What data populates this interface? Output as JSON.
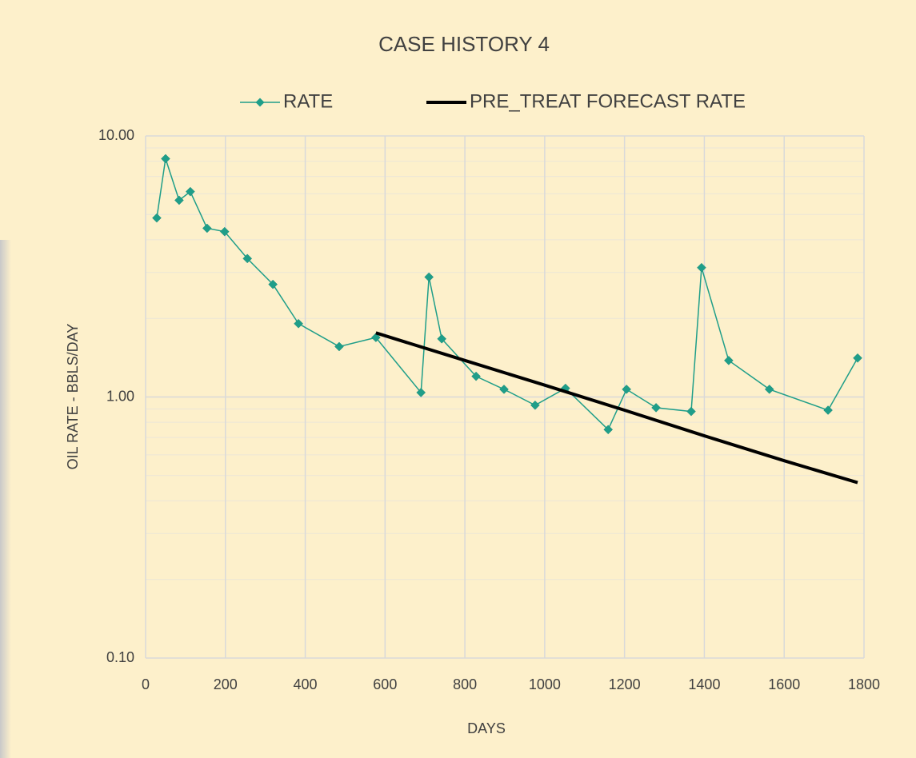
{
  "chart_data": {
    "type": "line",
    "title": "CASE HISTORY 4",
    "x_label": "DAYS",
    "y_label": "OIL RATE - BBLS/DAY",
    "log_y": true,
    "grid": true,
    "legend": "top",
    "xlim": [
      0,
      1800
    ],
    "xticks": [
      0,
      200,
      400,
      600,
      800,
      1000,
      1200,
      1400,
      1600,
      1800
    ],
    "ylim": [
      0.1,
      10
    ],
    "yticks": [
      {
        "value": 0.1,
        "label": "0.10"
      },
      {
        "value": 1,
        "label": "1.00"
      },
      {
        "value": 10,
        "label": "10.00"
      }
    ],
    "series": [
      {
        "name": "RATE",
        "color": "#1f9e89",
        "marker": "diamond",
        "x": [
          28,
          50,
          84,
          112,
          154,
          198,
          255,
          319,
          383,
          485,
          577,
          690,
          710,
          742,
          828,
          898,
          976,
          1052,
          1159,
          1205,
          1279,
          1367,
          1393,
          1461,
          1563,
          1710,
          1784
        ],
        "values": [
          4.85,
          8.18,
          5.67,
          6.12,
          4.43,
          4.3,
          3.39,
          2.7,
          1.91,
          1.56,
          1.69,
          1.04,
          2.88,
          1.67,
          1.2,
          1.07,
          0.93,
          1.08,
          0.75,
          1.07,
          0.91,
          0.88,
          3.13,
          1.38,
          1.07,
          0.89,
          1.41
        ]
      },
      {
        "name": "PRE_TREAT FORECAST RATE",
        "color": "#000000",
        "x": [
          577,
          800,
          1000,
          1200,
          1400,
          1600,
          1784
        ],
        "values": [
          1.76,
          1.38,
          1.11,
          0.89,
          0.71,
          0.57,
          0.47
        ]
      }
    ]
  }
}
